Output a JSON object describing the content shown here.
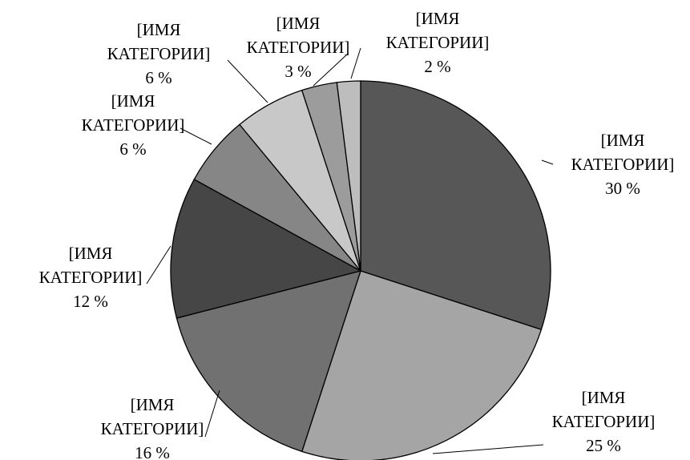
{
  "chart_data": {
    "type": "pie",
    "title": "",
    "start_angle_deg": 0,
    "direction": "clockwise",
    "slices": [
      {
        "label": "[ИМЯ КАТЕГОРИИ]",
        "label_lines": [
          "[ИМЯ",
          "КАТЕГОРИИ]"
        ],
        "value": 30,
        "value_text": "30 %",
        "color": "#575757"
      },
      {
        "label": "[ИМЯ КАТЕГОРИИ]",
        "label_lines": [
          "[ИМЯ",
          "КАТЕГОРИИ]"
        ],
        "value": 25,
        "value_text": "25 %",
        "color": "#a5a5a5"
      },
      {
        "label": "[ИМЯ КАТЕГОРИИ]",
        "label_lines": [
          "[ИМЯ",
          "КАТЕГОРИИ]"
        ],
        "value": 16,
        "value_text": "16 %",
        "color": "#717171"
      },
      {
        "label": "[ИМЯ КАТЕГОРИИ]",
        "label_lines": [
          "[ИМЯ",
          "КАТЕГОРИИ]"
        ],
        "value": 12,
        "value_text": "12 %",
        "color": "#464646"
      },
      {
        "label": "[ИМЯ КАТЕГОРИИ]",
        "label_lines": [
          "[ИМЯ",
          "КАТЕГОРИИ]"
        ],
        "value": 6,
        "value_text": "6 %",
        "color": "#868686"
      },
      {
        "label": "[ИМЯ КАТЕГОРИИ]",
        "label_lines": [
          "[ИМЯ",
          "КАТЕГОРИИ]"
        ],
        "value": 6,
        "value_text": "6 %",
        "color": "#c8c8c8"
      },
      {
        "label": "[ИМЯ КАТЕГОРИИ]",
        "label_lines": [
          "[ИМЯ",
          "КАТЕГОРИИ]"
        ],
        "value": 3,
        "value_text": "3 %",
        "color": "#9c9c9c"
      },
      {
        "label": "[ИМЯ КАТЕГОРИИ]",
        "label_lines": [
          "[ИМЯ",
          "КАТЕГОРИИ]"
        ],
        "value": 2,
        "value_text": "2 %",
        "color": "#bdbdbd"
      }
    ]
  }
}
